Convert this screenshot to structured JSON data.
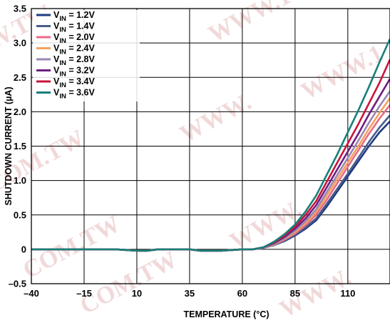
{
  "chart_data": {
    "type": "line",
    "xlabel": "TEMPERATURE (°C)",
    "ylabel": "SHUTDOWN CURRENT (µA)",
    "xlim": [
      -40,
      130
    ],
    "ylim": [
      -0.5,
      3.5
    ],
    "x_ticks": [
      -40,
      -15,
      10,
      35,
      60,
      85,
      110
    ],
    "x_tick_labels": [
      "–40",
      "–15",
      "10",
      "35",
      "60",
      "85",
      "110"
    ],
    "y_ticks": [
      -0.5,
      0,
      0.5,
      1.0,
      1.5,
      2.0,
      2.5,
      3.0,
      3.5
    ],
    "y_tick_labels": [
      "–0.5",
      "0",
      "0.5",
      "1.0",
      "1.5",
      "2.0",
      "2.5",
      "3.0",
      "3.5"
    ],
    "grid": true,
    "legend_position": "top-left",
    "x": [
      -40,
      -20,
      0,
      10,
      15,
      20,
      35,
      40,
      50,
      60,
      65,
      70,
      75,
      80,
      85,
      90,
      95,
      100,
      105,
      110,
      115,
      120,
      125,
      130
    ],
    "series": [
      {
        "name": "V_IN = 1.2V",
        "label_main": "V",
        "label_sub": "IN",
        "label_tail": " = 1.2V",
        "color": "#1f3b82",
        "values": [
          0,
          0,
          0,
          -0.02,
          -0.02,
          0,
          0,
          -0.02,
          -0.02,
          0,
          0,
          0.02,
          0.06,
          0.12,
          0.2,
          0.3,
          0.42,
          0.62,
          0.84,
          1.06,
          1.28,
          1.5,
          1.7,
          1.86
        ]
      },
      {
        "name": "V_IN = 1.4V",
        "label_main": "V",
        "label_sub": "IN",
        "label_tail": " = 1.4V",
        "color": "#4a5d8c",
        "values": [
          0,
          0,
          0,
          -0.02,
          -0.02,
          0,
          0,
          -0.02,
          -0.02,
          0,
          0,
          0.02,
          0.06,
          0.13,
          0.21,
          0.32,
          0.45,
          0.66,
          0.88,
          1.1,
          1.33,
          1.56,
          1.77,
          1.95
        ]
      },
      {
        "name": "V_IN = 2.0V",
        "label_main": "V",
        "label_sub": "IN",
        "label_tail": " = 2.0V",
        "color": "#e96a86",
        "values": [
          0,
          0,
          0,
          -0.02,
          -0.02,
          0,
          0,
          -0.02,
          -0.02,
          0,
          0,
          0.02,
          0.07,
          0.14,
          0.23,
          0.35,
          0.5,
          0.72,
          0.96,
          1.2,
          1.44,
          1.68,
          1.9,
          2.1
        ]
      },
      {
        "name": "V_IN = 2.4V",
        "label_main": "V",
        "label_sub": "IN",
        "label_tail": " = 2.4V",
        "color": "#f4a15c",
        "values": [
          0,
          0,
          0,
          -0.02,
          -0.02,
          0,
          0,
          -0.02,
          -0.02,
          0,
          0,
          0.02,
          0.07,
          0.15,
          0.25,
          0.38,
          0.54,
          0.78,
          1.02,
          1.26,
          1.5,
          1.75,
          1.98,
          2.2
        ]
      },
      {
        "name": "V_IN = 2.8V",
        "label_main": "V",
        "label_sub": "IN",
        "label_tail": " = 2.8V",
        "color": "#9b86b6",
        "values": [
          0,
          0,
          0,
          -0.02,
          -0.02,
          0,
          0,
          -0.02,
          -0.02,
          0,
          0,
          0.02,
          0.08,
          0.16,
          0.27,
          0.41,
          0.58,
          0.83,
          1.08,
          1.33,
          1.58,
          1.84,
          2.08,
          2.3
        ]
      },
      {
        "name": "V_IN = 3.2V",
        "label_main": "V",
        "label_sub": "IN",
        "label_tail": " = 3.2V",
        "color": "#6e1f82",
        "values": [
          0,
          0,
          0,
          -0.02,
          -0.02,
          0,
          0,
          -0.02,
          -0.02,
          0,
          0,
          0.03,
          0.09,
          0.18,
          0.3,
          0.45,
          0.64,
          0.9,
          1.16,
          1.42,
          1.68,
          1.96,
          2.22,
          2.48
        ]
      },
      {
        "name": "V_IN = 3.4V",
        "label_main": "V",
        "label_sub": "IN",
        "label_tail": " = 3.4V",
        "color": "#c8143c",
        "values": [
          0,
          0,
          0,
          -0.02,
          -0.02,
          0,
          0,
          -0.02,
          -0.02,
          0,
          0,
          0.03,
          0.1,
          0.2,
          0.33,
          0.5,
          0.7,
          0.98,
          1.26,
          1.54,
          1.82,
          2.12,
          2.42,
          2.76
        ]
      },
      {
        "name": "V_IN = 3.6V",
        "label_main": "V",
        "label_sub": "IN",
        "label_tail": " = 3.6V",
        "color": "#17807a",
        "values": [
          0,
          0,
          0,
          -0.02,
          -0.02,
          0,
          0,
          -0.02,
          -0.02,
          0,
          0,
          0.03,
          0.11,
          0.22,
          0.36,
          0.55,
          0.78,
          1.08,
          1.38,
          1.7,
          2.02,
          2.36,
          2.72,
          3.06
        ]
      }
    ]
  },
  "watermark": {
    "texts": [
      "W.TW",
      "WWW.100",
      "WWW.1",
      "COM.TW",
      "WWW.",
      "COM.TW",
      "COM.TW",
      "WWW.",
      "WWW."
    ]
  }
}
